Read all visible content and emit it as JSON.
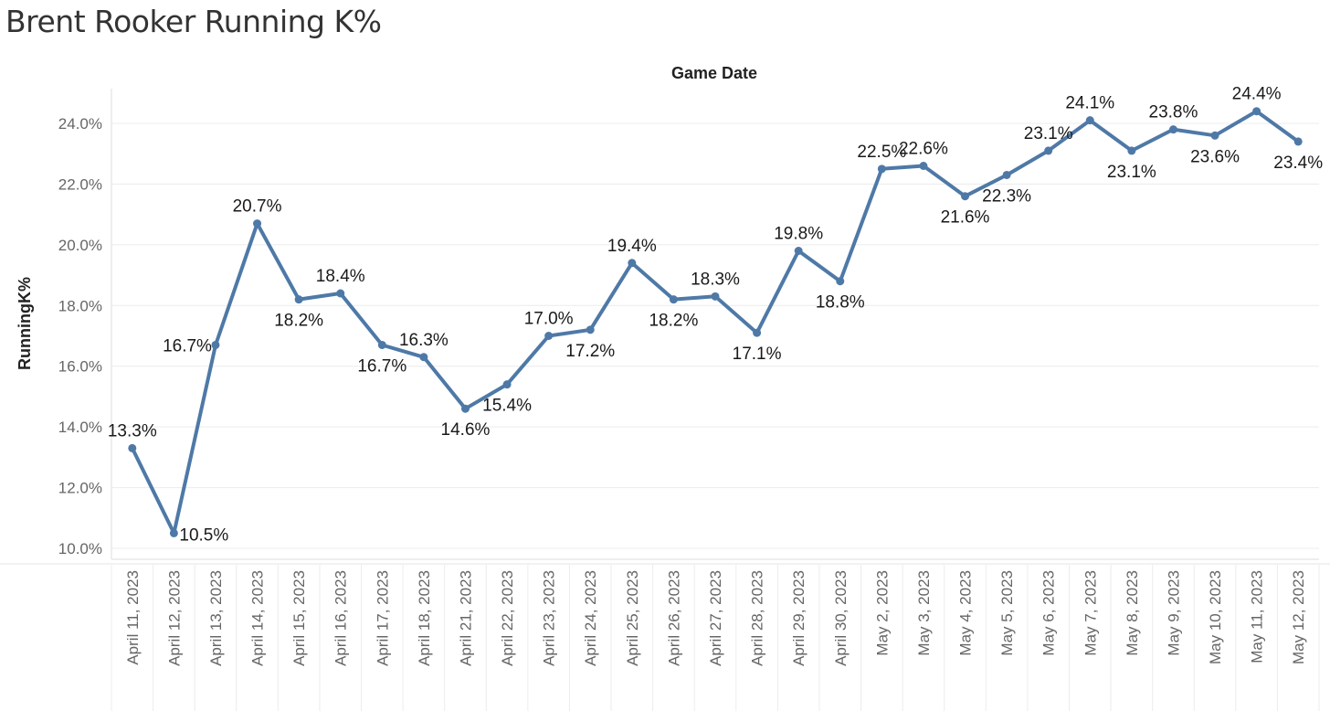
{
  "chart_data": {
    "type": "line",
    "title": "Brent Rooker Running K%",
    "xlabel": "Game Date",
    "ylabel": "RunningK%",
    "ylim": [
      10.0,
      25.0
    ],
    "y_ticks": [
      10,
      12,
      14,
      16,
      18,
      20,
      22,
      24
    ],
    "y_tick_labels": [
      "10.0%",
      "12.0%",
      "14.0%",
      "16.0%",
      "18.0%",
      "20.0%",
      "22.0%",
      "24.0%"
    ],
    "grid": true,
    "line_color": "#4e79a7",
    "categories": [
      "April 11, 2023",
      "April 12, 2023",
      "April 13, 2023",
      "April 14, 2023",
      "April 15, 2023",
      "April 16, 2023",
      "April 17, 2023",
      "April 18, 2023",
      "April 21, 2023",
      "April 22, 2023",
      "April 23, 2023",
      "April 24, 2023",
      "April 25, 2023",
      "April 26, 2023",
      "April 27, 2023",
      "April 28, 2023",
      "April 29, 2023",
      "April 30, 2023",
      "May 2, 2023",
      "May 3, 2023",
      "May 4, 2023",
      "May 5, 2023",
      "May 6, 2023",
      "May 7, 2023",
      "May 8, 2023",
      "May 9, 2023",
      "May 10, 2023",
      "May 11, 2023",
      "May 12, 2023"
    ],
    "values": [
      13.3,
      10.5,
      16.7,
      20.7,
      18.2,
      18.4,
      16.7,
      16.3,
      14.6,
      15.4,
      17.0,
      17.2,
      19.4,
      18.2,
      18.3,
      17.1,
      19.8,
      18.8,
      22.5,
      22.6,
      21.6,
      22.3,
      23.1,
      24.1,
      23.1,
      23.8,
      23.6,
      24.4,
      23.4
    ],
    "data_labels": [
      "13.3%",
      "10.5%",
      "16.7%",
      "20.7%",
      "18.2%",
      "18.4%",
      "16.7%",
      "16.3%",
      "14.6%",
      "15.4%",
      "17.0%",
      "17.2%",
      "19.4%",
      "18.2%",
      "18.3%",
      "17.1%",
      "19.8%",
      "18.8%",
      "22.5%",
      "22.6%",
      "21.6%",
      "22.3%",
      "23.1%",
      "24.1%",
      "23.1%",
      "23.8%",
      "23.6%",
      "24.4%",
      "23.4%"
    ],
    "label_positions": [
      "above",
      "right",
      "left",
      "above",
      "below",
      "above",
      "below",
      "above",
      "below",
      "below",
      "above",
      "below",
      "above",
      "below",
      "above",
      "below",
      "above",
      "below",
      "above",
      "above",
      "below",
      "below",
      "above",
      "above",
      "below",
      "above",
      "below",
      "above",
      "below"
    ]
  }
}
